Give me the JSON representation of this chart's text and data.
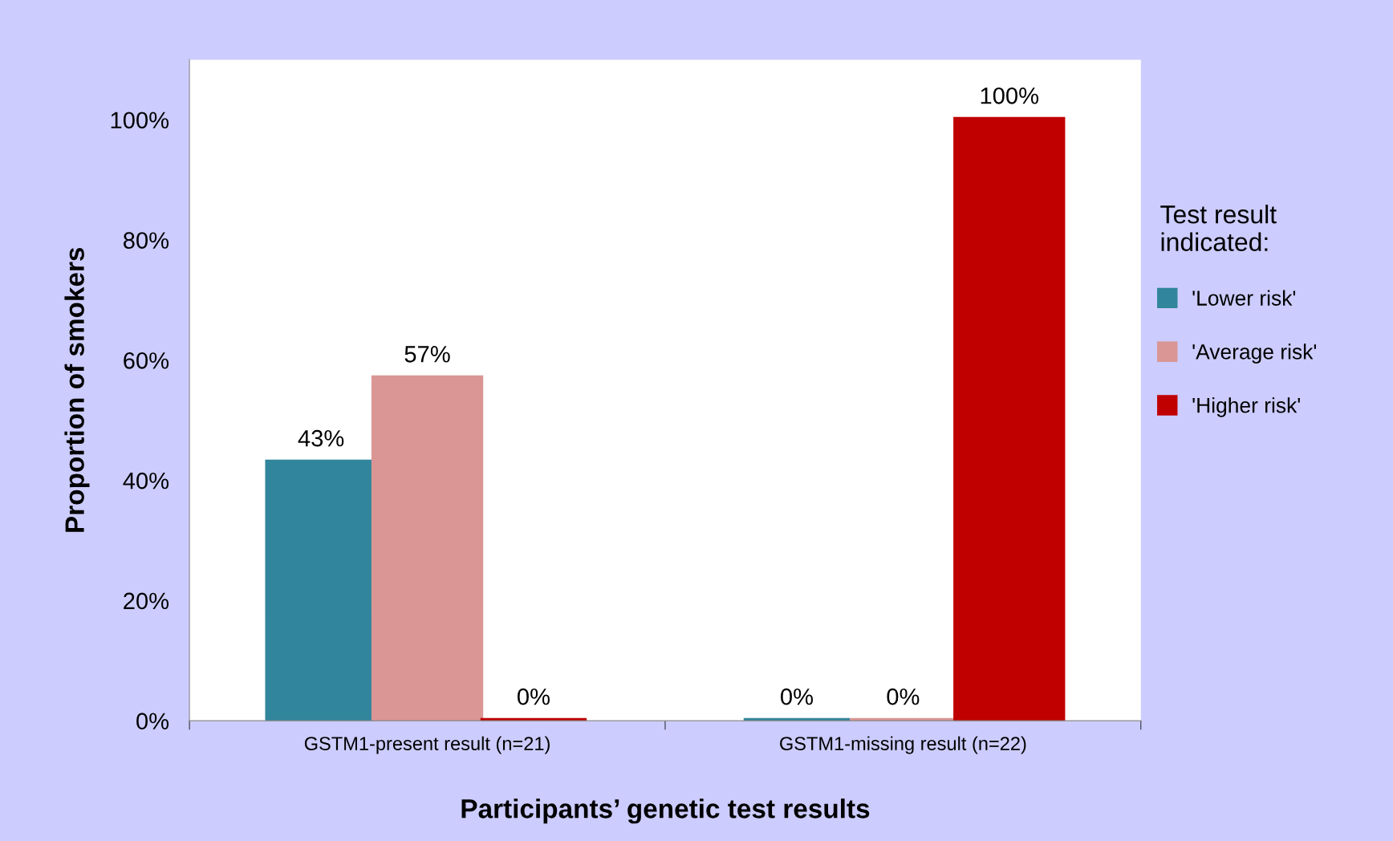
{
  "chart_data": {
    "type": "bar",
    "xlabel": "Participants’ genetic test results",
    "ylabel": "Proportion of smokers",
    "legend_title": "Test result\nindicated:",
    "categories": [
      "GSTM1-present result (n=21)",
      "GSTM1-missing result (n=22)"
    ],
    "series": [
      {
        "name": "'Lower risk'",
        "color": "#31859c",
        "values": [
          43,
          0
        ],
        "value_labels": [
          "43%",
          "0%"
        ]
      },
      {
        "name": "'Average risk'",
        "color": "#d99694",
        "values": [
          57,
          0
        ],
        "value_labels": [
          "57%",
          "0%"
        ]
      },
      {
        "name": "'Higher risk'",
        "color": "#c00000",
        "values": [
          0,
          100
        ],
        "value_labels": [
          "0%",
          "100%"
        ]
      }
    ],
    "ylim": [
      0,
      110
    ],
    "yticks": [
      {
        "value": 0,
        "label": "0%"
      },
      {
        "value": 20,
        "label": "20%"
      },
      {
        "value": 40,
        "label": "40%"
      },
      {
        "value": 60,
        "label": "60%"
      },
      {
        "value": 80,
        "label": "80%"
      },
      {
        "value": 100,
        "label": "100%"
      }
    ],
    "grid": false,
    "legend": "right"
  }
}
